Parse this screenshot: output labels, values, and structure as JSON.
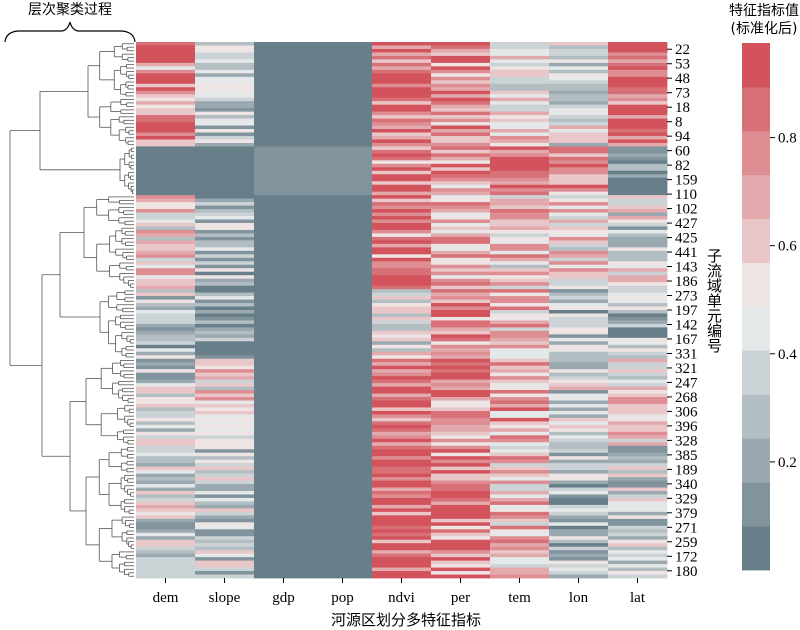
{
  "chart_data": {
    "type": "heatmap",
    "xlabel": "河源区划分多特征指标",
    "ylabel": "子流域单元编号",
    "dendrogram_title": "层次聚类过程",
    "colorbar_title_line1": "特征指标值",
    "colorbar_title_line2": "(标准化后)",
    "colorbar_ticks": [
      "0.2",
      "0.4",
      "0.6",
      "0.8"
    ],
    "colorbar_tick_values": [
      0.2,
      0.4,
      0.6,
      0.8
    ],
    "vmin": 0.0,
    "vmax": 1.0,
    "columns": [
      "dem",
      "slope",
      "gdp",
      "pop",
      "ndvi",
      "per",
      "tem",
      "lon",
      "lat"
    ],
    "row_tick_labels": [
      "22",
      "53",
      "48",
      "73",
      "18",
      "8",
      "94",
      "60",
      "82",
      "159",
      "110",
      "102",
      "427",
      "425",
      "441",
      "143",
      "186",
      "273",
      "197",
      "142",
      "167",
      "331",
      "321",
      "247",
      "268",
      "306",
      "396",
      "328",
      "385",
      "189",
      "340",
      "329",
      "379",
      "271",
      "259",
      "172",
      "180"
    ],
    "colors": {
      "low": "#5b7580",
      "mid": "#f1f2f2",
      "high": "#d0444f"
    },
    "clusters": [
      {
        "rows": 30,
        "means": [
          0.75,
          0.38,
          0.05,
          0.05,
          0.88,
          0.82,
          0.55,
          0.42,
          0.82
        ]
      },
      {
        "rows": 14,
        "means": [
          0.06,
          0.06,
          0.14,
          0.14,
          0.78,
          0.74,
          0.92,
          0.82,
          0.1
        ]
      },
      {
        "rows": 27,
        "means": [
          0.55,
          0.3,
          0.05,
          0.05,
          0.82,
          0.66,
          0.6,
          0.55,
          0.42
        ]
      },
      {
        "rows": 20,
        "means": [
          0.35,
          0.18,
          0.05,
          0.05,
          0.5,
          0.8,
          0.66,
          0.35,
          0.3
        ]
      },
      {
        "rows": 25,
        "means": [
          0.4,
          0.55,
          0.06,
          0.06,
          0.86,
          0.78,
          0.7,
          0.4,
          0.55
        ]
      },
      {
        "rows": 38,
        "means": [
          0.42,
          0.38,
          0.05,
          0.05,
          0.92,
          0.82,
          0.62,
          0.28,
          0.36
        ]
      }
    ]
  }
}
